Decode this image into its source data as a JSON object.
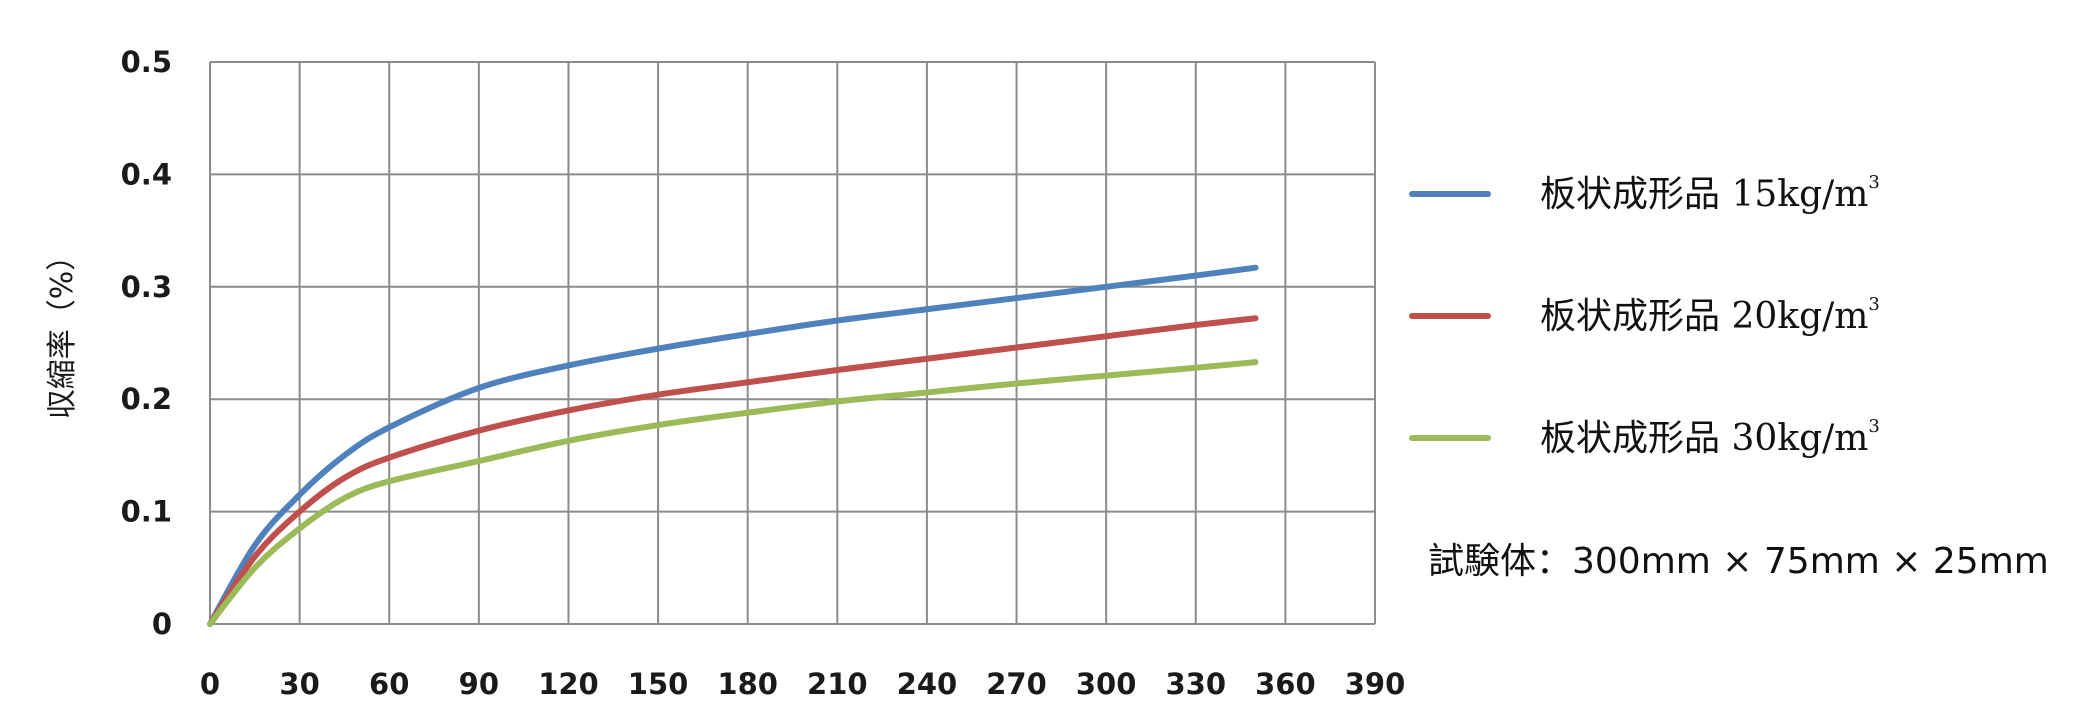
{
  "chart_data": {
    "type": "line",
    "title": "",
    "xlabel": "",
    "ylabel": "収縮率（%）",
    "xlim": [
      0,
      390
    ],
    "ylim": [
      0,
      0.5
    ],
    "xticks": [
      "0",
      "30",
      "60",
      "90",
      "120",
      "150",
      "180",
      "210",
      "240",
      "270",
      "300",
      "330",
      "360",
      "390"
    ],
    "yticks": [
      "0",
      "0.1",
      "0.2",
      "0.3",
      "0.4",
      "0.5"
    ],
    "grid": true,
    "legend_position": "right",
    "series": [
      {
        "name": "板状成形品 15kg/m",
        "name_sup": "3",
        "color": "#4f81bd",
        "x": [
          0,
          15,
          30,
          45,
          60,
          90,
          120,
          150,
          180,
          210,
          240,
          270,
          300,
          330,
          350
        ],
        "y": [
          0,
          0.07,
          0.115,
          0.15,
          0.175,
          0.21,
          0.23,
          0.245,
          0.258,
          0.27,
          0.28,
          0.29,
          0.3,
          0.31,
          0.317
        ]
      },
      {
        "name": "板状成形品 20kg/m",
        "name_sup": "3",
        "color": "#c0504d",
        "x": [
          0,
          15,
          30,
          45,
          60,
          90,
          120,
          150,
          180,
          210,
          240,
          270,
          300,
          330,
          350
        ],
        "y": [
          0,
          0.06,
          0.1,
          0.13,
          0.148,
          0.172,
          0.19,
          0.204,
          0.215,
          0.226,
          0.236,
          0.246,
          0.256,
          0.266,
          0.272
        ]
      },
      {
        "name": "板状成形品 30kg/m",
        "name_sup": "3",
        "color": "#9bbb59",
        "x": [
          0,
          15,
          30,
          45,
          60,
          90,
          120,
          150,
          180,
          210,
          240,
          270,
          300,
          330,
          350
        ],
        "y": [
          0,
          0.05,
          0.085,
          0.112,
          0.127,
          0.145,
          0.163,
          0.177,
          0.188,
          0.198,
          0.206,
          0.214,
          0.221,
          0.228,
          0.233
        ]
      }
    ],
    "annotation": "試験体：300mm × 75mm × 25mm"
  }
}
